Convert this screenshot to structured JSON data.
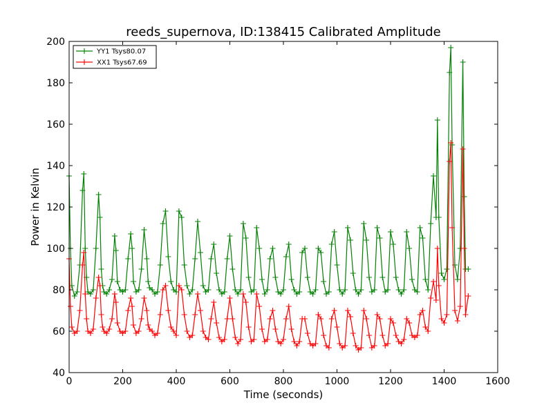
{
  "chart_data": {
    "type": "line",
    "title": "reeds_supernova, ID:138415 Calibrated Amplitude",
    "xlabel": "Time (seconds)",
    "ylabel": "Power in Kelvin",
    "xlim": [
      0,
      1600
    ],
    "ylim": [
      40,
      200
    ],
    "xticks": [
      "0",
      "200",
      "400",
      "600",
      "800",
      "1000",
      "1200",
      "1400",
      "1600"
    ],
    "yticks": [
      "40",
      "60",
      "80",
      "100",
      "120",
      "140",
      "160",
      "180",
      "200"
    ],
    "grid": false,
    "legend_position": "top-left",
    "marker": "+",
    "series": [
      {
        "name": "YY1 Tsys80.07",
        "color": "#008000",
        "x": [
          0,
          5,
          10,
          20,
          30,
          40,
          50,
          55,
          60,
          65,
          70,
          80,
          90,
          100,
          110,
          115,
          120,
          125,
          130,
          140,
          150,
          160,
          170,
          175,
          180,
          190,
          200,
          210,
          220,
          230,
          235,
          240,
          250,
          260,
          270,
          280,
          290,
          295,
          300,
          310,
          320,
          330,
          340,
          350,
          360,
          370,
          380,
          390,
          400,
          410,
          420,
          430,
          440,
          450,
          460,
          470,
          480,
          490,
          500,
          510,
          520,
          530,
          540,
          550,
          560,
          570,
          580,
          590,
          600,
          610,
          620,
          630,
          640,
          650,
          660,
          670,
          680,
          690,
          700,
          710,
          720,
          730,
          740,
          750,
          760,
          770,
          780,
          790,
          800,
          810,
          820,
          830,
          840,
          850,
          860,
          870,
          880,
          890,
          900,
          910,
          920,
          930,
          940,
          950,
          960,
          970,
          980,
          990,
          1000,
          1010,
          1020,
          1030,
          1040,
          1050,
          1060,
          1070,
          1080,
          1090,
          1100,
          1110,
          1120,
          1130,
          1140,
          1150,
          1160,
          1170,
          1180,
          1190,
          1200,
          1210,
          1220,
          1230,
          1240,
          1250,
          1260,
          1270,
          1280,
          1290,
          1300,
          1310,
          1320,
          1330,
          1340,
          1350,
          1360,
          1370,
          1375,
          1380,
          1390,
          1400,
          1410,
          1420,
          1425,
          1430,
          1440,
          1450,
          1460,
          1470,
          1475,
          1480,
          1490
        ],
        "values": [
          135,
          100,
          82,
          77,
          79,
          92,
          128,
          136,
          100,
          86,
          79,
          78,
          80,
          100,
          126,
          115,
          90,
          82,
          79,
          78,
          80,
          85,
          106,
          99,
          84,
          80,
          79,
          80,
          95,
          107,
          100,
          84,
          79,
          80,
          90,
          109,
          95,
          84,
          81,
          80,
          78,
          79,
          92,
          112,
          118,
          96,
          84,
          80,
          79,
          118,
          115,
          92,
          82,
          78,
          80,
          95,
          113,
          98,
          82,
          79,
          80,
          95,
          102,
          88,
          80,
          78,
          79,
          95,
          106,
          90,
          80,
          78,
          80,
          112,
          105,
          86,
          79,
          80,
          110,
          100,
          85,
          78,
          80,
          95,
          100,
          86,
          79,
          78,
          80,
          96,
          102,
          85,
          80,
          78,
          79,
          98,
          100,
          86,
          79,
          78,
          80,
          100,
          98,
          84,
          78,
          79,
          102,
          108,
          92,
          80,
          78,
          80,
          110,
          104,
          88,
          80,
          78,
          80,
          112,
          104,
          86,
          79,
          80,
          110,
          105,
          86,
          79,
          80,
          108,
          102,
          86,
          80,
          78,
          80,
          108,
          100,
          85,
          80,
          79,
          110,
          105,
          85,
          80,
          112,
          135,
          115,
          162,
          115,
          88,
          85,
          90,
          185,
          197,
          150,
          92,
          85,
          100,
          190,
          125,
          90,
          90
        ]
      },
      {
        "name": "XX1 Tsys67.69",
        "color": "#ff0000",
        "x": [
          0,
          5,
          10,
          20,
          30,
          40,
          50,
          55,
          60,
          65,
          70,
          80,
          90,
          100,
          110,
          115,
          120,
          125,
          130,
          140,
          150,
          160,
          170,
          175,
          180,
          190,
          200,
          210,
          220,
          230,
          235,
          240,
          250,
          260,
          270,
          280,
          290,
          295,
          300,
          310,
          320,
          330,
          340,
          350,
          360,
          370,
          380,
          390,
          400,
          410,
          420,
          430,
          440,
          450,
          460,
          470,
          480,
          490,
          500,
          510,
          520,
          530,
          540,
          550,
          560,
          570,
          580,
          590,
          600,
          610,
          620,
          630,
          640,
          650,
          660,
          670,
          680,
          690,
          700,
          710,
          720,
          730,
          740,
          750,
          760,
          770,
          780,
          790,
          800,
          810,
          820,
          830,
          840,
          850,
          860,
          870,
          880,
          890,
          900,
          910,
          920,
          930,
          940,
          950,
          960,
          970,
          980,
          990,
          1000,
          1010,
          1020,
          1030,
          1040,
          1050,
          1060,
          1070,
          1080,
          1090,
          1100,
          1110,
          1120,
          1130,
          1140,
          1150,
          1160,
          1170,
          1180,
          1190,
          1200,
          1210,
          1220,
          1230,
          1240,
          1250,
          1260,
          1270,
          1280,
          1290,
          1300,
          1310,
          1320,
          1330,
          1340,
          1350,
          1360,
          1370,
          1375,
          1380,
          1390,
          1400,
          1410,
          1420,
          1425,
          1430,
          1440,
          1450,
          1460,
          1470,
          1475,
          1480,
          1490
        ],
        "values": [
          95,
          72,
          62,
          59,
          60,
          70,
          92,
          98,
          78,
          66,
          60,
          59,
          61,
          76,
          86,
          82,
          68,
          62,
          60,
          59,
          61,
          66,
          78,
          74,
          64,
          60,
          59,
          60,
          70,
          76,
          72,
          63,
          59,
          60,
          66,
          76,
          70,
          63,
          61,
          60,
          58,
          59,
          68,
          80,
          82,
          70,
          62,
          60,
          58,
          82,
          80,
          68,
          60,
          57,
          58,
          68,
          78,
          70,
          60,
          57,
          56,
          66,
          74,
          64,
          57,
          55,
          56,
          66,
          76,
          66,
          57,
          54,
          56,
          78,
          74,
          62,
          55,
          56,
          78,
          72,
          61,
          55,
          56,
          66,
          70,
          61,
          55,
          54,
          56,
          66,
          72,
          61,
          55,
          53,
          55,
          66,
          66,
          59,
          54,
          53,
          54,
          68,
          66,
          58,
          53,
          52,
          66,
          70,
          62,
          54,
          52,
          53,
          70,
          67,
          59,
          53,
          51,
          52,
          70,
          66,
          58,
          52,
          53,
          68,
          66,
          58,
          53,
          54,
          66,
          64,
          58,
          55,
          54,
          56,
          66,
          64,
          58,
          57,
          58,
          68,
          70,
          62,
          60,
          76,
          84,
          75,
          100,
          82,
          66,
          64,
          68,
          142,
          151,
          110,
          70,
          65,
          72,
          148,
          100,
          68,
          77
        ]
      }
    ]
  }
}
